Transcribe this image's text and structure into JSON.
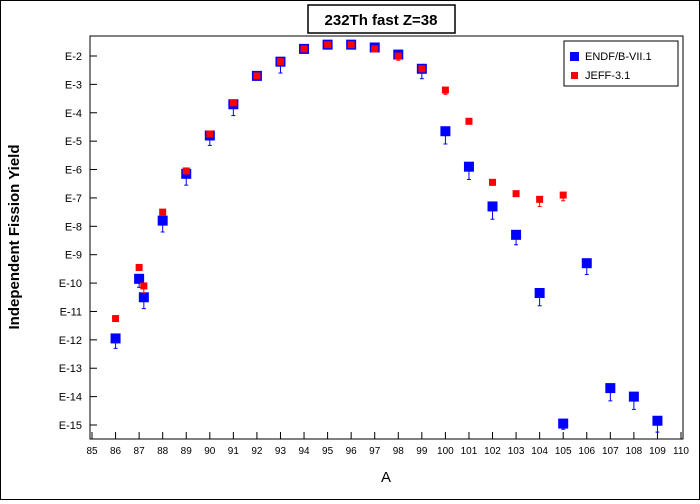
{
  "chart_data": {
    "type": "scatter",
    "title": "232Th fast Z=38",
    "xlabel": "A",
    "ylabel": "Independent Fission Yield",
    "xlim": [
      85,
      110
    ],
    "x_ticks": [
      "85",
      "86",
      "87",
      "88",
      "89",
      "90",
      "91",
      "92",
      "93",
      "94",
      "95",
      "96",
      "97",
      "98",
      "99",
      "100",
      "101",
      "102",
      "103",
      "104",
      "105",
      "106",
      "107",
      "108",
      "109",
      "110"
    ],
    "y_scale": "log",
    "ylim_exponent": [
      -15.5,
      -1.55
    ],
    "y_ticks": [
      {
        "exp": -2,
        "label": "E-2"
      },
      {
        "exp": -3,
        "label": "E-3"
      },
      {
        "exp": -4,
        "label": "E-4"
      },
      {
        "exp": -5,
        "label": "E-5"
      },
      {
        "exp": -6,
        "label": "E-6"
      },
      {
        "exp": -7,
        "label": "E-7"
      },
      {
        "exp": -8,
        "label": "E-8"
      },
      {
        "exp": -9,
        "label": "E-9"
      },
      {
        "exp": -10,
        "label": "E-10"
      },
      {
        "exp": -11,
        "label": "E-11"
      },
      {
        "exp": -12,
        "label": "E-12"
      },
      {
        "exp": -13,
        "label": "E-13"
      },
      {
        "exp": -14,
        "label": "E-14"
      },
      {
        "exp": -15,
        "label": "E-15"
      }
    ],
    "legend_position": "top-right",
    "grid": false,
    "series": [
      {
        "name": "ENDF/B-VII.1",
        "color": "#0000ff",
        "marker": "square-large",
        "points": [
          {
            "x": 86,
            "log10_y": -11.95,
            "err_log10": 0.35
          },
          {
            "x": 87,
            "log10_y": -9.85,
            "err_log10": 0.3
          },
          {
            "x": 87.2,
            "log10_y": -10.5,
            "err_log10": 0.4
          },
          {
            "x": 88,
            "log10_y": -7.8,
            "err_log10": 0.4
          },
          {
            "x": 89,
            "log10_y": -6.15,
            "err_log10": 0.4
          },
          {
            "x": 90,
            "log10_y": -4.8,
            "err_log10": 0.35
          },
          {
            "x": 91,
            "log10_y": -3.7,
            "err_log10": 0.4
          },
          {
            "x": 92,
            "log10_y": -2.7,
            "err_log10": 0.15
          },
          {
            "x": 93,
            "log10_y": -2.2,
            "err_log10": 0.4
          },
          {
            "x": 94,
            "log10_y": -1.75,
            "err_log10": 0.1
          },
          {
            "x": 95,
            "log10_y": -1.6,
            "err_log10": 0.05
          },
          {
            "x": 96,
            "log10_y": -1.6,
            "err_log10": 0.05
          },
          {
            "x": 97,
            "log10_y": -1.7,
            "err_log10": 0.1
          },
          {
            "x": 98,
            "log10_y": -1.95,
            "err_log10": 0.1
          },
          {
            "x": 99,
            "log10_y": -2.45,
            "err_log10": 0.35
          },
          {
            "x": 100,
            "log10_y": -4.65,
            "err_log10": 0.45
          },
          {
            "x": 101,
            "log10_y": -5.9,
            "err_log10": 0.45
          },
          {
            "x": 102,
            "log10_y": -7.3,
            "err_log10": 0.45
          },
          {
            "x": 103,
            "log10_y": -8.3,
            "err_log10": 0.35
          },
          {
            "x": 104,
            "log10_y": -10.35,
            "err_log10": 0.45
          },
          {
            "x": 105,
            "log10_y": -14.95,
            "err_log10": 0.2
          },
          {
            "x": 106,
            "log10_y": -9.3,
            "err_log10": 0.4
          },
          {
            "x": 107,
            "log10_y": -13.7,
            "err_log10": 0.45
          },
          {
            "x": 108,
            "log10_y": -14.0,
            "err_log10": 0.45
          },
          {
            "x": 109,
            "log10_y": -14.85,
            "err_log10": 0.4
          }
        ]
      },
      {
        "name": "JEFF-3.1",
        "color": "#ff0000",
        "marker": "square-small",
        "points": [
          {
            "x": 86,
            "log10_y": -11.25,
            "err_log10": 0.05
          },
          {
            "x": 87,
            "log10_y": -9.45,
            "err_log10": 0.05
          },
          {
            "x": 87.2,
            "log10_y": -10.1,
            "err_log10": 0.25
          },
          {
            "x": 88,
            "log10_y": -7.5,
            "err_log10": 0.05
          },
          {
            "x": 89,
            "log10_y": -6.05,
            "err_log10": 0.05
          },
          {
            "x": 90,
            "log10_y": -4.75,
            "err_log10": 0.05
          },
          {
            "x": 91,
            "log10_y": -3.65,
            "err_log10": 0.05
          },
          {
            "x": 92,
            "log10_y": -2.7,
            "err_log10": 0.05
          },
          {
            "x": 93,
            "log10_y": -2.2,
            "err_log10": 0.05
          },
          {
            "x": 94,
            "log10_y": -1.75,
            "err_log10": 0.05
          },
          {
            "x": 95,
            "log10_y": -1.6,
            "err_log10": 0.05
          },
          {
            "x": 96,
            "log10_y": -1.6,
            "err_log10": 0.05
          },
          {
            "x": 97,
            "log10_y": -1.75,
            "err_log10": 0.05
          },
          {
            "x": 98,
            "log10_y": -2.0,
            "err_log10": 0.15
          },
          {
            "x": 99,
            "log10_y": -2.45,
            "err_log10": 0.1
          },
          {
            "x": 100,
            "log10_y": -3.2,
            "err_log10": 0.15
          },
          {
            "x": 101,
            "log10_y": -4.3,
            "err_log10": 0.1
          },
          {
            "x": 102,
            "log10_y": -6.45,
            "err_log10": 0.1
          },
          {
            "x": 103,
            "log10_y": -6.85,
            "err_log10": 0.1
          },
          {
            "x": 104,
            "log10_y": -7.05,
            "err_log10": 0.25
          },
          {
            "x": 105,
            "log10_y": -6.9,
            "err_log10": 0.2
          }
        ]
      }
    ]
  }
}
